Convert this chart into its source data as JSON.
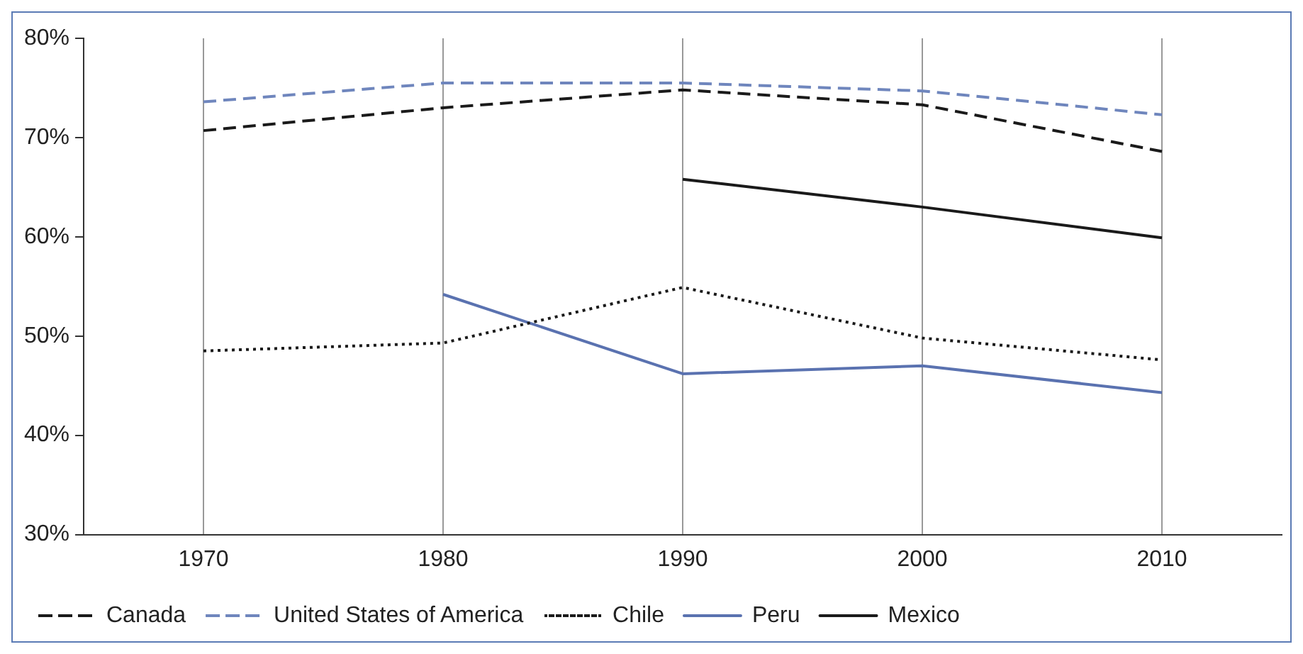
{
  "chart_data": {
    "type": "line",
    "categories": [
      "1970",
      "1980",
      "1990",
      "2000",
      "2010"
    ],
    "series": [
      {
        "name": "Canada",
        "color": "#1a1a1a",
        "line_style": "dashed",
        "values": [
          70.7,
          73.0,
          74.8,
          73.3,
          68.6
        ]
      },
      {
        "name": "United States of America",
        "color": "#6f86bd",
        "line_style": "dashed",
        "values": [
          73.6,
          75.5,
          75.5,
          74.7,
          72.3
        ]
      },
      {
        "name": "Chile",
        "color": "#1a1a1a",
        "line_style": "dotted",
        "values": [
          48.5,
          49.3,
          54.9,
          49.8,
          47.6
        ]
      },
      {
        "name": "Peru",
        "color": "#5a72b0",
        "line_style": "solid",
        "values": [
          null,
          54.2,
          46.2,
          47.0,
          44.3
        ]
      },
      {
        "name": "Mexico",
        "color": "#1a1a1a",
        "line_style": "solid",
        "values": [
          null,
          null,
          65.8,
          63.0,
          59.9
        ]
      }
    ],
    "ylim": [
      30,
      80
    ],
    "yticks": [
      {
        "value": 30,
        "label": "30%"
      },
      {
        "value": 40,
        "label": "40%"
      },
      {
        "value": 50,
        "label": "50%"
      },
      {
        "value": 60,
        "label": "60%"
      },
      {
        "value": 70,
        "label": "70%"
      },
      {
        "value": 80,
        "label": "80%"
      }
    ],
    "grid": "x",
    "legend": "bottom",
    "marker": "none"
  }
}
